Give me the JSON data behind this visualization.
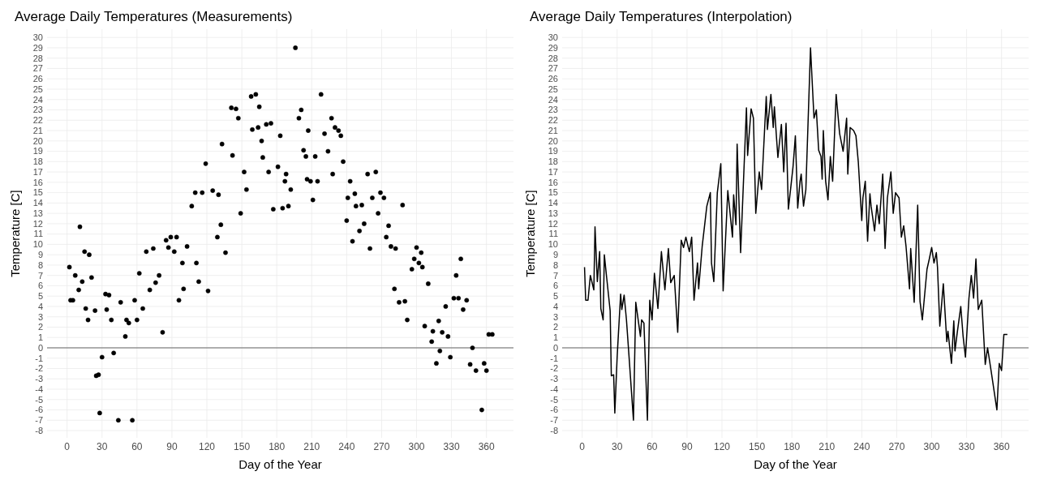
{
  "chart_data": [
    {
      "type": "scatter",
      "title": "Average Daily Temperatures (Measurements)",
      "xlabel": "Day of the Year",
      "ylabel": "Temperature [C]",
      "marker": "circle",
      "grid": true,
      "xlim": [
        -17.2,
        383.2
      ],
      "ylim": [
        -8.7,
        30.8
      ],
      "xticks": [
        0,
        30,
        60,
        90,
        120,
        150,
        180,
        210,
        240,
        270,
        300,
        330,
        360
      ],
      "yticks": [
        -8,
        -7,
        -6,
        -5,
        -4,
        -3,
        -2,
        -1,
        0,
        1,
        2,
        3,
        4,
        5,
        6,
        7,
        8,
        9,
        10,
        11,
        12,
        13,
        14,
        15,
        16,
        17,
        18,
        19,
        20,
        21,
        22,
        23,
        24,
        25,
        26,
        27,
        28,
        29,
        30
      ],
      "ref_lines": [
        {
          "axis": "y",
          "value": 0,
          "color": "#666666"
        }
      ],
      "series": [
        {
          "color": "#000000",
          "x": [
            2,
            3,
            5,
            7,
            10,
            11,
            13,
            15,
            16,
            18,
            19,
            21,
            24,
            25,
            27,
            28,
            30,
            33,
            34,
            36,
            38,
            40,
            44,
            46,
            50,
            51,
            53,
            56,
            58,
            60,
            62,
            65,
            68,
            71,
            74,
            76,
            79,
            82,
            85,
            87,
            89,
            92,
            94,
            96,
            99,
            100,
            103,
            107,
            110,
            111,
            113,
            116,
            119,
            121,
            125,
            129,
            130,
            132,
            133,
            136,
            141,
            142,
            145,
            147,
            149,
            152,
            154,
            158,
            159,
            162,
            164,
            165,
            167,
            168,
            171,
            173,
            175,
            177,
            181,
            183,
            185,
            187,
            188,
            190,
            192,
            196,
            199,
            201,
            203,
            205,
            206,
            207,
            209,
            211,
            213,
            215,
            218,
            221,
            224,
            227,
            228,
            230,
            233,
            235,
            237,
            240,
            241,
            243,
            245,
            247,
            248,
            251,
            253,
            255,
            258,
            260,
            262,
            265,
            267,
            269,
            272,
            274,
            276,
            278,
            281,
            282,
            285,
            288,
            290,
            292,
            296,
            298,
            300,
            302,
            304,
            305,
            307,
            310,
            313,
            314,
            317,
            319,
            320,
            322,
            325,
            327,
            329,
            332,
            334,
            336,
            338,
            340,
            343,
            346,
            348,
            351,
            356,
            358,
            360,
            362,
            365
          ],
          "values": [
            7.8,
            4.6,
            4.6,
            7.0,
            5.6,
            11.7,
            6.4,
            9.3,
            3.8,
            2.7,
            9.0,
            6.8,
            3.6,
            -2.7,
            -2.6,
            -6.3,
            -0.9,
            5.2,
            3.7,
            5.1,
            2.7,
            -0.5,
            -7.0,
            4.4,
            1.1,
            2.7,
            2.4,
            -7.0,
            4.6,
            2.7,
            7.2,
            3.8,
            9.3,
            5.6,
            9.6,
            6.3,
            7.0,
            1.5,
            10.4,
            9.7,
            10.7,
            9.3,
            10.7,
            4.6,
            8.2,
            5.7,
            9.8,
            13.7,
            15.0,
            8.2,
            6.4,
            15.0,
            17.8,
            5.5,
            15.2,
            10.7,
            14.8,
            11.9,
            19.7,
            9.2,
            23.2,
            18.6,
            23.1,
            22.2,
            13.0,
            17.0,
            15.3,
            24.3,
            21.1,
            24.5,
            21.3,
            23.3,
            20.0,
            18.4,
            21.6,
            17.0,
            21.7,
            13.4,
            17.5,
            20.5,
            13.5,
            16.1,
            16.8,
            13.7,
            15.3,
            29.0,
            22.2,
            23.0,
            19.1,
            18.5,
            16.3,
            21.0,
            16.1,
            14.3,
            18.5,
            16.1,
            24.5,
            20.7,
            19.0,
            22.2,
            16.8,
            21.3,
            21.0,
            20.5,
            18.0,
            12.3,
            14.5,
            16.1,
            10.3,
            14.9,
            13.7,
            11.3,
            13.8,
            12.0,
            16.8,
            9.6,
            14.5,
            17.0,
            13.0,
            15.0,
            14.5,
            10.7,
            11.8,
            9.8,
            5.7,
            9.6,
            4.4,
            13.8,
            4.5,
            2.7,
            7.6,
            8.6,
            9.7,
            8.2,
            9.2,
            7.8,
            2.1,
            6.2,
            0.6,
            1.6,
            -1.5,
            2.6,
            -0.3,
            1.5,
            4.0,
            1.1,
            -0.9,
            4.8,
            7.0,
            4.8,
            8.6,
            3.7,
            4.6,
            -1.6,
            0.0,
            -2.2,
            -6.0,
            -1.5,
            -2.2,
            1.3,
            1.3
          ]
        }
      ]
    },
    {
      "type": "line",
      "title": "Average Daily Temperatures (Interpolation)",
      "xlabel": "Day of the Year",
      "ylabel": "Temperature [C]",
      "grid": true,
      "line_style": "solid",
      "xlim": [
        -17.2,
        383.2
      ],
      "ylim": [
        -8.7,
        30.8
      ],
      "xticks": [
        0,
        30,
        60,
        90,
        120,
        150,
        180,
        210,
        240,
        270,
        300,
        330,
        360
      ],
      "yticks": [
        -8,
        -7,
        -6,
        -5,
        -4,
        -3,
        -2,
        -1,
        0,
        1,
        2,
        3,
        4,
        5,
        6,
        7,
        8,
        9,
        10,
        11,
        12,
        13,
        14,
        15,
        16,
        17,
        18,
        19,
        20,
        21,
        22,
        23,
        24,
        25,
        26,
        27,
        28,
        29,
        30
      ],
      "ref_lines": [
        {
          "axis": "y",
          "value": 0,
          "color": "#666666"
        }
      ],
      "series": [
        {
          "color": "#000000",
          "x": [
            2,
            3,
            5,
            7,
            10,
            11,
            13,
            15,
            16,
            18,
            19,
            21,
            24,
            25,
            27,
            28,
            30,
            33,
            34,
            36,
            38,
            40,
            44,
            46,
            50,
            51,
            53,
            56,
            58,
            60,
            62,
            65,
            68,
            71,
            74,
            76,
            79,
            82,
            85,
            87,
            89,
            92,
            94,
            96,
            99,
            100,
            103,
            107,
            110,
            111,
            113,
            116,
            119,
            121,
            125,
            129,
            130,
            132,
            133,
            136,
            141,
            142,
            145,
            147,
            149,
            152,
            154,
            158,
            159,
            162,
            164,
            165,
            167,
            168,
            171,
            173,
            175,
            177,
            181,
            183,
            185,
            187,
            188,
            190,
            192,
            196,
            199,
            201,
            203,
            205,
            206,
            207,
            209,
            211,
            213,
            215,
            218,
            221,
            224,
            227,
            228,
            230,
            233,
            235,
            237,
            240,
            241,
            243,
            245,
            247,
            248,
            251,
            253,
            255,
            258,
            260,
            262,
            265,
            267,
            269,
            272,
            274,
            276,
            278,
            281,
            282,
            285,
            288,
            290,
            292,
            296,
            298,
            300,
            302,
            304,
            305,
            307,
            310,
            313,
            314,
            317,
            319,
            320,
            322,
            325,
            327,
            329,
            332,
            334,
            336,
            338,
            340,
            343,
            346,
            348,
            351,
            356,
            358,
            360,
            362,
            365
          ],
          "values": [
            7.8,
            4.6,
            4.6,
            7.0,
            5.6,
            11.7,
            6.4,
            9.3,
            3.8,
            2.7,
            9.0,
            6.8,
            3.6,
            -2.7,
            -2.6,
            -6.3,
            -0.9,
            5.2,
            3.7,
            5.1,
            2.7,
            -0.5,
            -7.0,
            4.4,
            1.1,
            2.7,
            2.4,
            -7.0,
            4.6,
            2.7,
            7.2,
            3.8,
            9.3,
            5.6,
            9.6,
            6.3,
            7.0,
            1.5,
            10.4,
            9.7,
            10.7,
            9.3,
            10.7,
            4.6,
            8.2,
            5.7,
            9.8,
            13.7,
            15.0,
            8.2,
            6.4,
            15.0,
            17.8,
            5.5,
            15.2,
            10.7,
            14.8,
            11.9,
            19.7,
            9.2,
            23.2,
            18.6,
            23.1,
            22.2,
            13.0,
            17.0,
            15.3,
            24.3,
            21.1,
            24.5,
            21.3,
            23.3,
            20.0,
            18.4,
            21.6,
            17.0,
            21.7,
            13.4,
            17.5,
            20.5,
            13.5,
            16.1,
            16.8,
            13.7,
            15.3,
            29.0,
            22.2,
            23.0,
            19.1,
            18.5,
            16.3,
            21.0,
            16.1,
            14.3,
            18.5,
            16.1,
            24.5,
            20.7,
            19.0,
            22.2,
            16.8,
            21.3,
            21.0,
            20.5,
            18.0,
            12.3,
            14.5,
            16.1,
            10.3,
            14.9,
            13.7,
            11.3,
            13.8,
            12.0,
            16.8,
            9.6,
            14.5,
            17.0,
            13.0,
            15.0,
            14.5,
            10.7,
            11.8,
            9.8,
            5.7,
            9.6,
            4.4,
            13.8,
            4.5,
            2.7,
            7.6,
            8.6,
            9.7,
            8.2,
            9.2,
            7.8,
            2.1,
            6.2,
            0.6,
            1.6,
            -1.5,
            2.6,
            -0.3,
            1.5,
            4.0,
            1.1,
            -0.9,
            4.8,
            7.0,
            4.8,
            8.6,
            3.7,
            4.6,
            -1.6,
            0.0,
            -2.2,
            -6.0,
            -1.5,
            -2.2,
            1.3,
            1.3
          ]
        }
      ]
    }
  ]
}
